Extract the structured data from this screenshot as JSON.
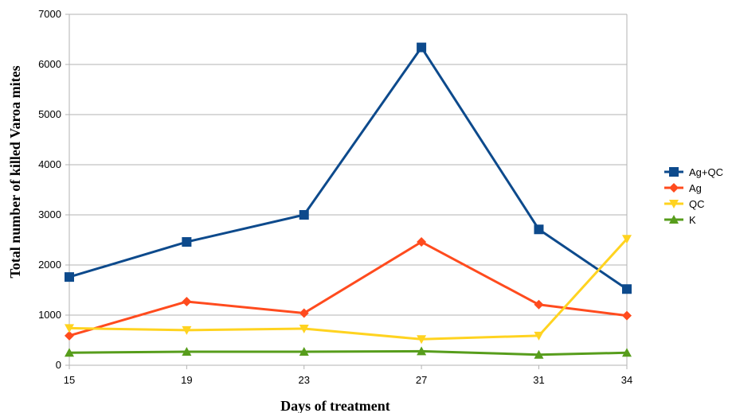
{
  "chart_data": {
    "type": "line",
    "title": "",
    "xlabel": "Days of treatment",
    "ylabel": "Total number of killed Varoa mites",
    "x": [
      15,
      19,
      23,
      27,
      31,
      34
    ],
    "ylim": [
      0,
      7000
    ],
    "yticks": [
      0,
      1000,
      2000,
      3000,
      4000,
      5000,
      6000,
      7000
    ],
    "grid": "horizontal",
    "legend_position": "right",
    "series": [
      {
        "name": "Ag+QC",
        "color": "#0d4a8c",
        "marker": "square",
        "values": [
          1760,
          2460,
          3000,
          6340,
          2710,
          1520
        ]
      },
      {
        "name": "Ag",
        "color": "#ff4b1e",
        "marker": "diamond",
        "values": [
          590,
          1270,
          1040,
          2460,
          1210,
          990
        ]
      },
      {
        "name": "QC",
        "color": "#ffd320",
        "marker": "triangle-down",
        "values": [
          740,
          700,
          730,
          520,
          590,
          2520
        ]
      },
      {
        "name": "K",
        "color": "#579d1c",
        "marker": "triangle-up",
        "values": [
          250,
          270,
          270,
          280,
          210,
          250
        ]
      }
    ]
  }
}
